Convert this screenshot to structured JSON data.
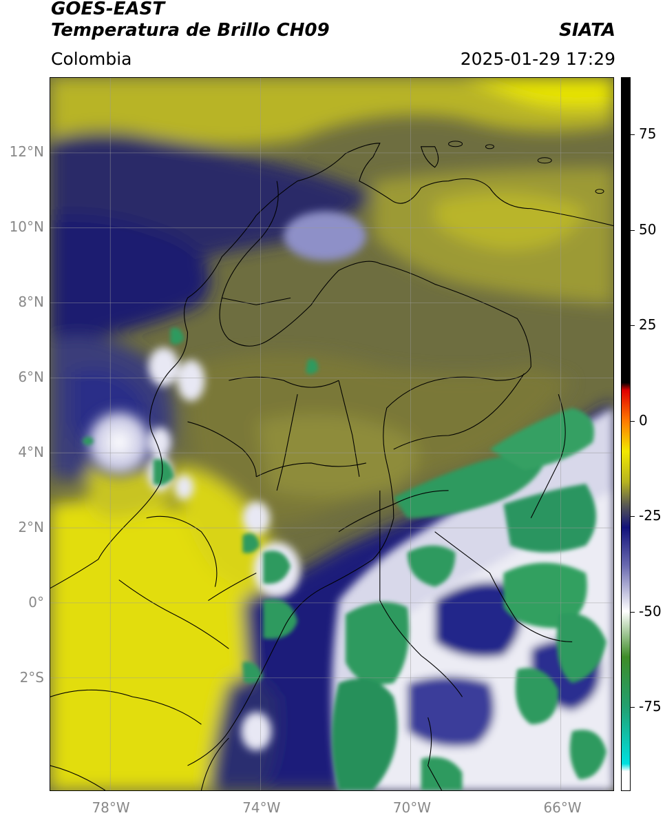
{
  "header": {
    "satellite": "GOES-EAST",
    "product": "Temperatura de Brillo CH09",
    "region": "Colombia",
    "institution": "SIATA",
    "datetime": "2025-01-29 17:29"
  },
  "map": {
    "lat_labels": [
      "12°N",
      "10°N",
      "8°N",
      "6°N",
      "4°N",
      "2°N",
      "0°",
      "2°S"
    ],
    "lon_labels": [
      "78°W",
      "74°W",
      "70°W",
      "66°W"
    ],
    "lat_range": [
      -5,
      14
    ],
    "lon_range": [
      -79.6,
      -64.6
    ],
    "grid": true,
    "colors": {
      "warm": "#e6e200",
      "mid": "#8a8a3a",
      "cold_blue": "#1a1e78",
      "white": "#f4f4f8",
      "green": "#2e9a5e",
      "background_dark": "#3c3e5c"
    }
  },
  "colorbar": {
    "ticks": [
      "75",
      "50",
      "25",
      "0",
      "-25",
      "-50",
      "-75"
    ],
    "tick_values": [
      75,
      50,
      25,
      0,
      -25,
      -50,
      -75
    ],
    "range": [
      -97,
      90
    ],
    "stops": [
      {
        "v": 90,
        "c": "#000000"
      },
      {
        "v": 10,
        "c": "#000000"
      },
      {
        "v": 8,
        "c": "#e00000"
      },
      {
        "v": 0,
        "c": "#ff7a00"
      },
      {
        "v": -8,
        "c": "#f2e800"
      },
      {
        "v": -16,
        "c": "#b7b420"
      },
      {
        "v": -22,
        "c": "#5a5a52"
      },
      {
        "v": -28,
        "c": "#12127a"
      },
      {
        "v": -38,
        "c": "#6a6ab0"
      },
      {
        "v": -50,
        "c": "#ffffff"
      },
      {
        "v": -62,
        "c": "#3e8c28"
      },
      {
        "v": -75,
        "c": "#22a070"
      },
      {
        "v": -90,
        "c": "#00e0e0"
      },
      {
        "v": -92,
        "c": "#ffffff"
      },
      {
        "v": -97,
        "c": "#ffffff"
      }
    ]
  }
}
